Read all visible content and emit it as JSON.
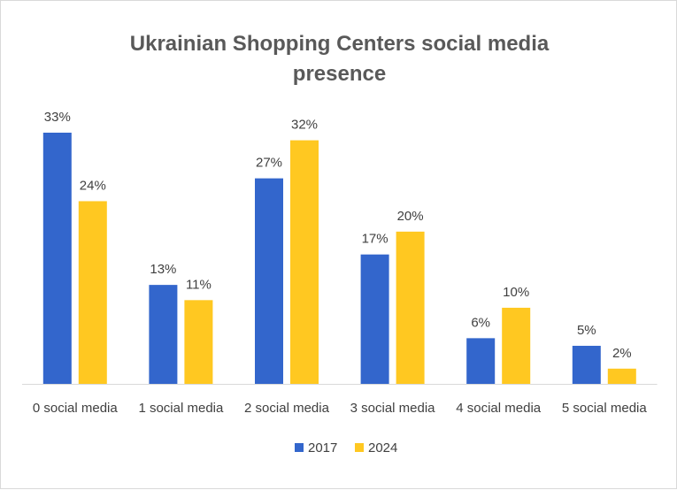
{
  "chart_data": {
    "type": "bar",
    "title": "Ukrainian Shopping Centers social media presence",
    "categories": [
      "0 social media",
      "1 social media",
      "2 social media",
      "3 social media",
      "4 social media",
      "5 social media"
    ],
    "series": [
      {
        "name": "2017",
        "color": "#3366CC",
        "values": [
          33,
          13,
          27,
          17,
          6,
          5
        ],
        "labels": [
          "33%",
          "13%",
          "27%",
          "17%",
          "6%",
          "5%"
        ]
      },
      {
        "name": "2024",
        "color": "#FFC821",
        "values": [
          24,
          11,
          32,
          20,
          10,
          2
        ],
        "labels": [
          "24%",
          "11%",
          "32%",
          "20%",
          "10%",
          "2%"
        ]
      }
    ],
    "ylim": [
      0,
      33
    ],
    "xlabel": "",
    "ylabel": "",
    "grid": false,
    "legend": "bottom"
  }
}
